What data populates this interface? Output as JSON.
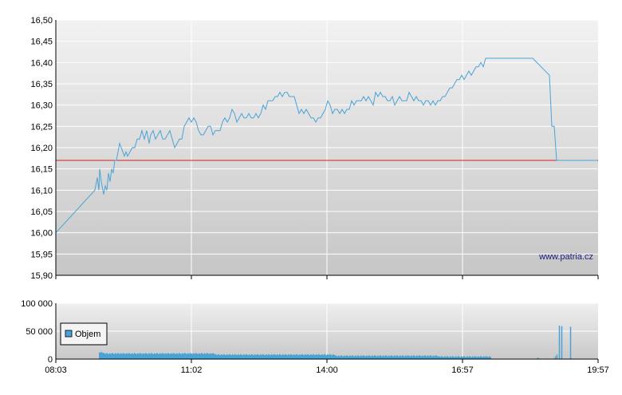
{
  "colors": {
    "price_line": "#4aa3d6",
    "reference_line": "#cc2222",
    "volume_bar": "#4aa3d6",
    "plot_bg_top": "#f0f0f0",
    "plot_bg_bottom": "#c8c8c8",
    "grid": "#ffffff",
    "axis": "#000000"
  },
  "watermark": "www.patria.cz",
  "chart_data": [
    {
      "type": "line",
      "title": "",
      "xlabel": "",
      "ylabel": "",
      "ylim": [
        15.9,
        16.5
      ],
      "y_ticks": [
        "16,50",
        "16,45",
        "16,40",
        "16,35",
        "16,30",
        "16,25",
        "16,20",
        "16,15",
        "16,10",
        "16,05",
        "16,00",
        "15,95",
        "15,90"
      ],
      "grid": true,
      "reference_line": 16.17,
      "series": [
        {
          "values": [
            [
              0,
              16.0
            ],
            [
              49,
              16.1
            ],
            [
              52,
              16.13
            ],
            [
              54,
              16.1
            ],
            [
              55,
              16.15
            ],
            [
              57,
              16.12
            ],
            [
              58,
              16.11
            ],
            [
              60,
              16.09
            ],
            [
              62,
              16.11
            ],
            [
              64,
              16.1
            ],
            [
              66,
              16.14
            ],
            [
              68,
              16.12
            ],
            [
              70,
              16.15
            ],
            [
              72,
              16.14
            ],
            [
              74,
              16.17
            ],
            [
              76,
              16.17
            ],
            [
              78,
              16.19
            ],
            [
              80,
              16.21
            ],
            [
              82,
              16.2
            ],
            [
              84,
              16.19
            ],
            [
              86,
              16.18
            ],
            [
              88,
              16.19
            ],
            [
              90,
              16.18
            ],
            [
              93,
              16.19
            ],
            [
              96,
              16.2
            ],
            [
              99,
              16.2
            ],
            [
              102,
              16.22
            ],
            [
              105,
              16.22
            ],
            [
              108,
              16.24
            ],
            [
              111,
              16.22
            ],
            [
              114,
              16.24
            ],
            [
              117,
              16.21
            ],
            [
              119,
              16.23
            ],
            [
              122,
              16.24
            ],
            [
              125,
              16.22
            ],
            [
              128,
              16.23
            ],
            [
              131,
              16.24
            ],
            [
              134,
              16.22
            ],
            [
              137,
              16.22
            ],
            [
              140,
              16.23
            ],
            [
              143,
              16.24
            ],
            [
              146,
              16.22
            ],
            [
              149,
              16.2
            ],
            [
              152,
              16.21
            ],
            [
              155,
              16.22
            ],
            [
              158,
              16.22
            ],
            [
              161,
              16.25
            ],
            [
              164,
              16.26
            ],
            [
              167,
              16.27
            ],
            [
              170,
              16.26
            ],
            [
              173,
              16.27
            ],
            [
              176,
              16.26
            ],
            [
              179,
              16.24
            ],
            [
              182,
              16.23
            ],
            [
              185,
              16.23
            ],
            [
              188,
              16.24
            ],
            [
              191,
              16.25
            ],
            [
              194,
              16.25
            ],
            [
              197,
              16.23
            ],
            [
              200,
              16.24
            ],
            [
              203,
              16.24
            ],
            [
              206,
              16.24
            ],
            [
              209,
              16.26
            ],
            [
              212,
              16.27
            ],
            [
              215,
              16.26
            ],
            [
              218,
              16.27
            ],
            [
              221,
              16.29
            ],
            [
              224,
              16.28
            ],
            [
              227,
              16.26
            ],
            [
              230,
              16.27
            ],
            [
              233,
              16.28
            ],
            [
              236,
              16.27
            ],
            [
              239,
              16.27
            ],
            [
              242,
              16.28
            ],
            [
              245,
              16.27
            ],
            [
              248,
              16.27
            ],
            [
              251,
              16.28
            ],
            [
              254,
              16.27
            ],
            [
              257,
              16.28
            ],
            [
              260,
              16.3
            ],
            [
              263,
              16.29
            ],
            [
              266,
              16.31
            ],
            [
              269,
              16.31
            ],
            [
              272,
              16.31
            ],
            [
              275,
              16.32
            ],
            [
              278,
              16.32
            ],
            [
              281,
              16.33
            ],
            [
              284,
              16.32
            ],
            [
              287,
              16.33
            ],
            [
              290,
              16.33
            ],
            [
              293,
              16.32
            ],
            [
              296,
              16.32
            ],
            [
              299,
              16.32
            ],
            [
              302,
              16.3
            ],
            [
              305,
              16.28
            ],
            [
              308,
              16.29
            ],
            [
              311,
              16.28
            ],
            [
              314,
              16.29
            ],
            [
              317,
              16.28
            ],
            [
              320,
              16.27
            ],
            [
              323,
              16.27
            ],
            [
              326,
              16.26
            ],
            [
              329,
              16.27
            ],
            [
              332,
              16.27
            ],
            [
              335,
              16.28
            ],
            [
              338,
              16.29
            ],
            [
              341,
              16.31
            ],
            [
              344,
              16.3
            ],
            [
              347,
              16.28
            ],
            [
              350,
              16.29
            ],
            [
              353,
              16.29
            ],
            [
              356,
              16.28
            ],
            [
              359,
              16.29
            ],
            [
              362,
              16.28
            ],
            [
              365,
              16.29
            ],
            [
              368,
              16.29
            ],
            [
              371,
              16.31
            ],
            [
              374,
              16.3
            ],
            [
              377,
              16.31
            ],
            [
              380,
              16.31
            ],
            [
              383,
              16.31
            ],
            [
              386,
              16.32
            ],
            [
              389,
              16.31
            ],
            [
              392,
              16.32
            ],
            [
              395,
              16.31
            ],
            [
              398,
              16.3
            ],
            [
              401,
              16.33
            ],
            [
              404,
              16.32
            ],
            [
              407,
              16.33
            ],
            [
              410,
              16.32
            ],
            [
              413,
              16.32
            ],
            [
              416,
              16.31
            ],
            [
              419,
              16.31
            ],
            [
              422,
              16.32
            ],
            [
              425,
              16.3
            ],
            [
              428,
              16.31
            ],
            [
              431,
              16.32
            ],
            [
              434,
              16.31
            ],
            [
              437,
              16.31
            ],
            [
              440,
              16.31
            ],
            [
              443,
              16.33
            ],
            [
              446,
              16.32
            ],
            [
              449,
              16.31
            ],
            [
              452,
              16.32
            ],
            [
              455,
              16.31
            ],
            [
              458,
              16.31
            ],
            [
              461,
              16.3
            ],
            [
              464,
              16.31
            ],
            [
              467,
              16.31
            ],
            [
              470,
              16.3
            ],
            [
              473,
              16.31
            ],
            [
              476,
              16.3
            ],
            [
              479,
              16.31
            ],
            [
              482,
              16.31
            ],
            [
              485,
              16.32
            ],
            [
              488,
              16.32
            ],
            [
              491,
              16.33
            ],
            [
              494,
              16.34
            ],
            [
              497,
              16.34
            ],
            [
              500,
              16.35
            ],
            [
              503,
              16.36
            ],
            [
              506,
              16.36
            ],
            [
              509,
              16.37
            ],
            [
              512,
              16.36
            ],
            [
              515,
              16.37
            ],
            [
              518,
              16.38
            ],
            [
              521,
              16.37
            ],
            [
              524,
              16.38
            ],
            [
              527,
              16.39
            ],
            [
              530,
              16.39
            ],
            [
              533,
              16.4
            ],
            [
              536,
              16.39
            ],
            [
              539,
              16.41
            ],
            [
              543,
              16.41
            ],
            [
              598,
              16.41
            ],
            [
              619,
              16.37
            ],
            [
              622,
              16.25
            ],
            [
              625,
              16.25
            ],
            [
              628,
              16.17
            ],
            [
              679,
              16.17
            ]
          ]
        }
      ]
    },
    {
      "type": "bar",
      "title": "",
      "xlabel": "",
      "ylabel": "",
      "ylim": [
        0,
        100000
      ],
      "y_ticks": [
        "100 000",
        "50 000",
        "0"
      ],
      "x_ticks": [
        "08:03",
        "11:02",
        "14:00",
        "16:57",
        "19:57"
      ],
      "grid": true,
      "legend": {
        "position": "left",
        "entries": [
          "Objem"
        ]
      },
      "series": [
        {
          "name": "Objem",
          "segments": [
            {
              "from": 54,
              "to": 60,
              "value": 13000
            },
            {
              "from": 60,
              "to": 200,
              "value": 11000
            },
            {
              "from": 200,
              "to": 350,
              "value": 9000
            },
            {
              "from": 350,
              "to": 480,
              "value": 7000
            },
            {
              "from": 480,
              "to": 546,
              "value": 5500
            }
          ],
          "spikes": [
            {
              "x": 604,
              "value": 3000
            },
            {
              "x": 626,
              "value": 5000
            },
            {
              "x": 628,
              "value": 8000
            },
            {
              "x": 631,
              "value": 60000
            },
            {
              "x": 634,
              "value": 59000
            },
            {
              "x": 645,
              "value": 58000
            }
          ]
        }
      ]
    }
  ]
}
